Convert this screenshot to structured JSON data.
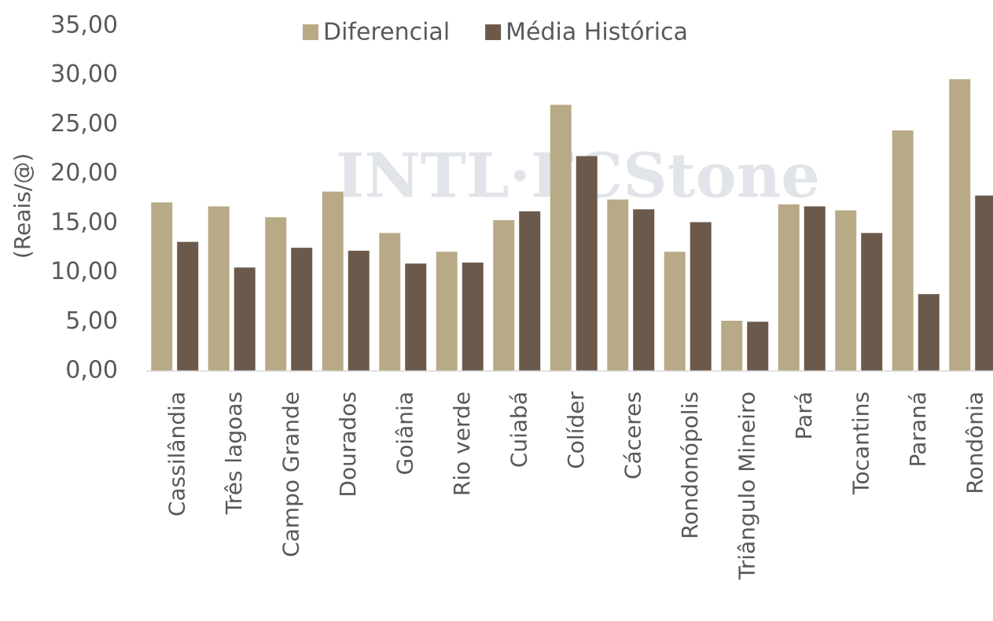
{
  "chart_data": {
    "type": "bar",
    "y_label": "(Reais/@)",
    "watermark": "INTL·FCStone",
    "categories": [
      "Cassilândia",
      "Três lagoas",
      "Campo Grande",
      "Dourados",
      "Goiânia",
      "Rio verde",
      "Cuiabá",
      "Colíder",
      "Cáceres",
      "Rondonópolis",
      "Triângulo Mineiro",
      "Pará",
      "Tocantins",
      "Paraná",
      "Rondônia"
    ],
    "series": [
      {
        "name": "Diferencial",
        "color": "#b8aa87",
        "values": [
          17.1,
          16.7,
          15.6,
          18.2,
          14.0,
          12.1,
          15.3,
          27.0,
          17.4,
          12.1,
          5.1,
          16.9,
          16.3,
          24.4,
          29.6
        ]
      },
      {
        "name": "Média Histórica",
        "color": "#6b5a4c",
        "values": [
          13.1,
          10.5,
          12.5,
          12.2,
          10.9,
          11.0,
          16.2,
          21.8,
          16.4,
          15.1,
          5.0,
          16.7,
          14.0,
          7.8,
          17.8
        ]
      }
    ],
    "ylim": [
      0,
      35
    ],
    "yticks": [
      {
        "value": 0,
        "label": "0,00"
      },
      {
        "value": 5,
        "label": "5,00"
      },
      {
        "value": 10,
        "label": "10,00"
      },
      {
        "value": 15,
        "label": "15,00"
      },
      {
        "value": 20,
        "label": "20,00"
      },
      {
        "value": 25,
        "label": "25,00"
      },
      {
        "value": 30,
        "label": "30,00"
      },
      {
        "value": 35,
        "label": "35,00"
      }
    ],
    "legend": "top",
    "grid": false
  }
}
